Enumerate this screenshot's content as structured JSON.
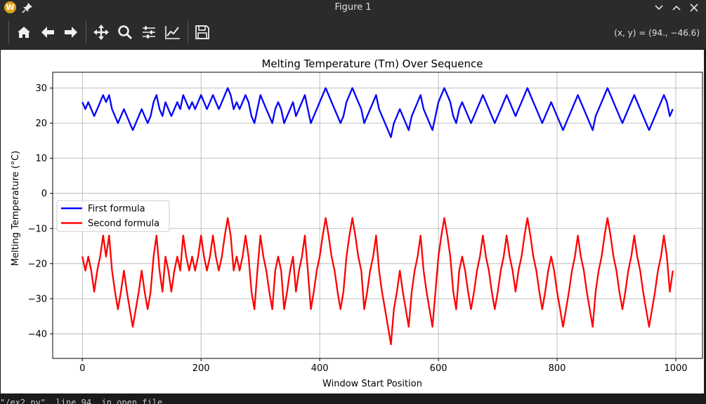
{
  "window": {
    "title": "Figure 1",
    "app_icon_letter": "W",
    "icons": {
      "app": "app-icon",
      "pin": "pin-icon",
      "minimize": "chevron-down-icon",
      "maximize": "chevron-up-icon",
      "close": "close-icon"
    }
  },
  "toolbar": {
    "buttons": [
      {
        "name": "home",
        "icon": "home-icon"
      },
      {
        "name": "back",
        "icon": "arrow-left-icon"
      },
      {
        "name": "forward",
        "icon": "arrow-right-icon"
      },
      {
        "name": "pan",
        "icon": "move-icon"
      },
      {
        "name": "zoom",
        "icon": "magnifier-icon"
      },
      {
        "name": "configure-subplots",
        "icon": "sliders-icon"
      },
      {
        "name": "edit-axes",
        "icon": "line-chart-icon"
      },
      {
        "name": "save",
        "icon": "floppy-disk-icon"
      }
    ],
    "coord_readout": "(x, y) = (94., −46.6)"
  },
  "terminal": {
    "text": "\"/ex2.py\", line 94, in open_file"
  },
  "chart_data": {
    "type": "line",
    "title": "Melting Temperature (Tm) Over Sequence",
    "xlabel": "Window Start Position",
    "ylabel": "Melting Temperature (°C)",
    "xlim": [
      -50,
      1045
    ],
    "ylim": [
      -47,
      34.5
    ],
    "xticks": [
      0,
      200,
      400,
      600,
      800,
      1000
    ],
    "yticks": [
      30,
      20,
      10,
      0,
      -10,
      -20,
      -30,
      -40
    ],
    "ytick_labels": [
      "30",
      "20",
      "10",
      "0",
      "−10",
      "−20",
      "−30",
      "−40"
    ],
    "grid": true,
    "legend_position": "center-left",
    "x_step": 5,
    "series": [
      {
        "name": "First formula",
        "color": "#0000ff",
        "values": [
          26,
          24,
          26,
          24,
          22,
          24,
          26,
          28,
          26,
          28,
          24,
          22,
          20,
          22,
          24,
          22,
          20,
          18,
          20,
          22,
          24,
          22,
          20,
          22,
          26,
          28,
          24,
          22,
          26,
          24,
          22,
          24,
          26,
          24,
          28,
          26,
          24,
          26,
          24,
          26,
          28,
          26,
          24,
          26,
          28,
          26,
          24,
          26,
          28,
          30,
          28,
          24,
          26,
          24,
          26,
          28,
          26,
          22,
          20,
          24,
          28,
          26,
          24,
          22,
          20,
          24,
          26,
          24,
          20,
          22,
          24,
          26,
          22,
          24,
          26,
          28,
          24,
          20,
          22,
          24,
          26,
          28,
          30,
          28,
          26,
          24,
          22,
          20,
          22,
          26,
          28,
          30,
          28,
          26,
          24,
          20,
          22,
          24,
          26,
          28,
          24,
          22,
          20,
          18,
          16,
          20,
          22,
          24,
          22,
          20,
          18,
          22,
          24,
          26,
          28,
          24,
          22,
          20,
          18,
          22,
          26,
          28,
          30,
          28,
          26,
          22,
          20,
          24,
          26,
          24,
          22,
          20,
          22,
          24,
          26,
          28,
          26,
          24,
          22,
          20,
          22,
          24,
          26,
          28,
          26,
          24,
          22,
          24,
          26,
          28,
          30,
          28,
          26,
          24,
          22,
          20,
          22,
          24,
          26,
          24,
          22,
          20,
          18,
          20,
          22,
          24,
          26,
          28,
          26,
          24,
          22,
          20,
          18,
          22,
          24,
          26,
          28,
          30,
          28,
          26,
          24,
          22,
          20,
          22,
          24,
          26,
          28,
          26,
          24,
          22,
          20,
          18,
          20,
          22,
          24,
          26,
          28,
          26,
          22,
          24
        ]
      },
      {
        "name": "Second formula",
        "color": "#ff0000",
        "values": [
          -18,
          -22,
          -18,
          -22,
          -28,
          -22,
          -18,
          -12,
          -18,
          -12,
          -22,
          -28,
          -33,
          -28,
          -22,
          -28,
          -33,
          -38,
          -33,
          -28,
          -22,
          -28,
          -33,
          -28,
          -18,
          -12,
          -22,
          -28,
          -18,
          -22,
          -28,
          -22,
          -18,
          -22,
          -12,
          -18,
          -22,
          -18,
          -22,
          -18,
          -12,
          -18,
          -22,
          -18,
          -12,
          -18,
          -22,
          -18,
          -12,
          -7,
          -12,
          -22,
          -18,
          -22,
          -18,
          -12,
          -18,
          -28,
          -33,
          -22,
          -12,
          -18,
          -22,
          -28,
          -33,
          -22,
          -18,
          -22,
          -33,
          -28,
          -22,
          -18,
          -28,
          -22,
          -18,
          -12,
          -22,
          -33,
          -28,
          -22,
          -18,
          -12,
          -7,
          -12,
          -18,
          -22,
          -28,
          -33,
          -28,
          -18,
          -12,
          -7,
          -12,
          -18,
          -22,
          -33,
          -28,
          -22,
          -18,
          -12,
          -22,
          -28,
          -33,
          -38,
          -43,
          -33,
          -28,
          -22,
          -28,
          -33,
          -38,
          -28,
          -22,
          -18,
          -12,
          -22,
          -28,
          -33,
          -38,
          -28,
          -18,
          -12,
          -7,
          -12,
          -18,
          -28,
          -33,
          -22,
          -18,
          -22,
          -28,
          -33,
          -28,
          -22,
          -18,
          -12,
          -18,
          -22,
          -28,
          -33,
          -28,
          -22,
          -18,
          -12,
          -18,
          -22,
          -28,
          -22,
          -18,
          -12,
          -7,
          -12,
          -18,
          -22,
          -28,
          -33,
          -28,
          -22,
          -18,
          -22,
          -28,
          -33,
          -38,
          -33,
          -28,
          -22,
          -18,
          -12,
          -18,
          -22,
          -28,
          -33,
          -38,
          -28,
          -22,
          -18,
          -12,
          -7,
          -12,
          -18,
          -22,
          -28,
          -33,
          -28,
          -22,
          -18,
          -12,
          -18,
          -22,
          -28,
          -33,
          -38,
          -33,
          -28,
          -22,
          -18,
          -12,
          -18,
          -28,
          -22
        ]
      }
    ]
  }
}
